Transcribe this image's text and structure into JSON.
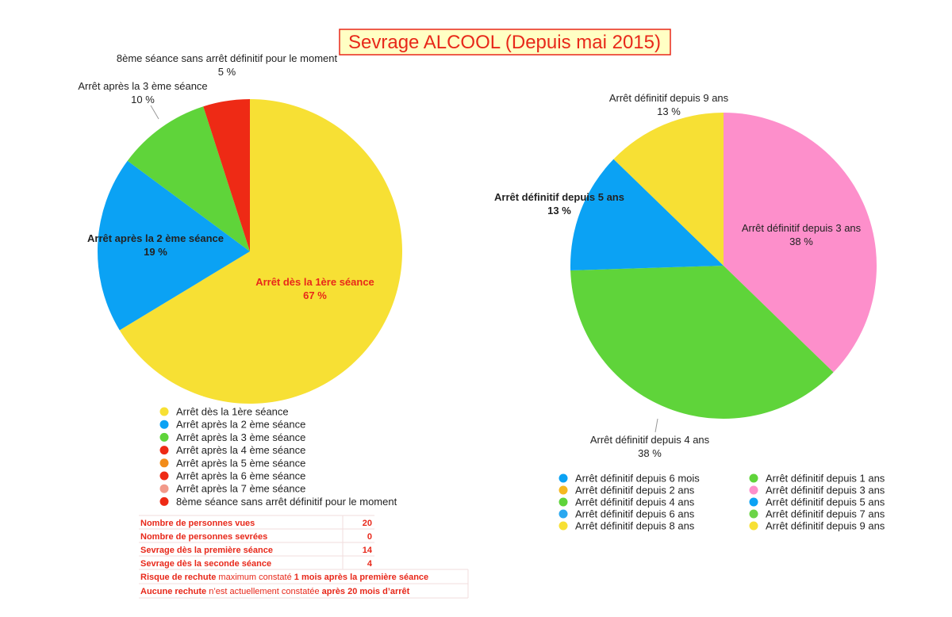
{
  "title": "Sevrage ALCOOL (Depuis mai 2015)",
  "chart_data": [
    {
      "type": "pie",
      "categories": [
        "Arrêt dès la 1ère séance",
        "Arrêt après la 2 ème séance",
        "Arrêt après la 3 ème séance",
        "Arrêt après la 4 ème séance",
        "Arrêt après la 5 ème séance",
        "Arrêt après la 6 ème séance",
        "Arrêt après la 7 ème séance",
        "8ème séance sans arrêt définitif pour le moment"
      ],
      "values": [
        67,
        19,
        10,
        0,
        0,
        0,
        0,
        5
      ],
      "value_labels": [
        "67 %",
        "19 %",
        "10 %",
        null,
        null,
        null,
        null,
        "5 %"
      ],
      "colors": [
        "#f7e034",
        "#0ba2f4",
        "#5fd43a",
        "#ee2a15",
        "#f28c1a",
        "#ee2a15",
        "#f29a8a",
        "#ee2a15"
      ]
    },
    {
      "type": "pie",
      "categories": [
        "Arrêt définitif depuis 6 mois",
        "Arrêt définitif depuis 1 ans",
        "Arrêt définitif depuis 2 ans",
        "Arrêt définitif depuis 3 ans",
        "Arrêt définitif depuis 4 ans",
        "Arrêt définitif depuis 5 ans",
        "Arrêt définitif depuis 6 ans",
        "Arrêt définitif depuis 7 ans",
        "Arrêt définitif depuis 8 ans",
        "Arrêt définitif depuis 9 ans"
      ],
      "values": [
        0,
        0,
        0,
        38,
        38,
        13,
        0,
        0,
        0,
        13
      ],
      "value_labels": [
        null,
        null,
        null,
        "38 %",
        "38 %",
        "13 %",
        null,
        null,
        null,
        "13 %"
      ],
      "colors": [
        "#0ba2f4",
        "#5fd43a",
        "#f5b820",
        "#fd8fcb",
        "#5fd43a",
        "#0ba2f4",
        "#2aa8f0",
        "#6cd448",
        "#f7e034",
        "#f7e034"
      ]
    }
  ],
  "table": {
    "rows": [
      [
        "Nombre de personnes vues",
        20
      ],
      [
        "Nombre de personnes sevrées",
        0
      ],
      [
        "Sevrage dès la première séance",
        14
      ],
      [
        "Sevrage dès la seconde séance",
        4
      ]
    ],
    "notes": [
      [
        "Risque de rechute",
        " maximum constaté ",
        "1 mois après la première séance"
      ],
      [
        "Aucune rechute",
        " n’est actuellement constatée ",
        "après 20 mois d’arrêt"
      ]
    ]
  }
}
